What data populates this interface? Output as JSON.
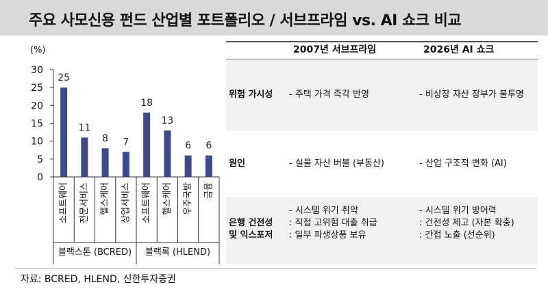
{
  "title": "주요 사모신용 펀드 산업별 포트폴리오 / 서브프라임 vs. AI 쇼크 비교",
  "chart_data": {
    "type": "bar",
    "unit": "(%)",
    "ylim": [
      0,
      30
    ],
    "yticks": [
      0,
      5,
      10,
      15,
      20,
      25,
      30
    ],
    "categories": [
      "소프트웨어",
      "전문서비스",
      "헬스케어",
      "상업서비스",
      "소프트웨어",
      "헬스케어",
      "우주국방",
      "금융"
    ],
    "values": [
      25,
      11,
      8,
      7,
      18,
      13,
      6,
      6
    ],
    "groups": [
      {
        "label": "블랙스톤 (BCRED)",
        "count": 4
      },
      {
        "label": "블랙록 (HLEND)",
        "count": 4
      }
    ],
    "bar_color": "#3f4a8a"
  },
  "table": {
    "col_headers": [
      "2007년 서브프라임",
      "2026년 AI 쇼크"
    ],
    "rows": [
      {
        "head": [
          "위험 가시성"
        ],
        "c1": [
          "- 주택 가격 즉각 반영"
        ],
        "c2": [
          "- 비상장 자산 장부가 불투명"
        ]
      },
      {
        "head": [
          "원인"
        ],
        "c1": [
          "- 실물 자산 버블 (부동산)"
        ],
        "c2": [
          "- 산업 구조적 변화 (AI)"
        ]
      },
      {
        "head": [
          "은행 건전성",
          "및 익스포저"
        ],
        "c1": [
          "- 시스템 위기 취약",
          ": 직접 고위험 대출 취급",
          ": 일부 파생상품 보유"
        ],
        "c2": [
          "- 시스템 위기 방어력",
          ": 건전성 제고 (자본 확충)",
          ": 간접 노출 (선순위)"
        ]
      }
    ]
  },
  "source": "자료: BCRED, HLEND,  신한투자증권"
}
